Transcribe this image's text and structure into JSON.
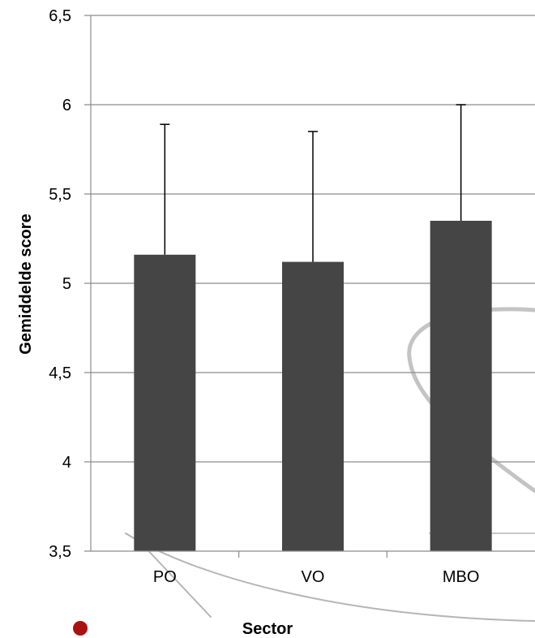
{
  "chart_data": {
    "type": "bar",
    "categories": [
      "PO",
      "VO",
      "MBO"
    ],
    "values": [
      5.16,
      5.12,
      5.35
    ],
    "error_upper": [
      5.89,
      5.85,
      6.0
    ],
    "xlabel": "Sector",
    "ylabel": "Gemiddelde score",
    "ylim": [
      3.5,
      6.5
    ],
    "yticks": [
      "3,5",
      "4",
      "4,5",
      "5",
      "5,5",
      "6",
      "6,5"
    ],
    "grid": true,
    "colors": {
      "bar": "#454545",
      "grid": "#8c8c8c",
      "axis": "#8c8c8c",
      "error_bar": "#000000"
    }
  }
}
